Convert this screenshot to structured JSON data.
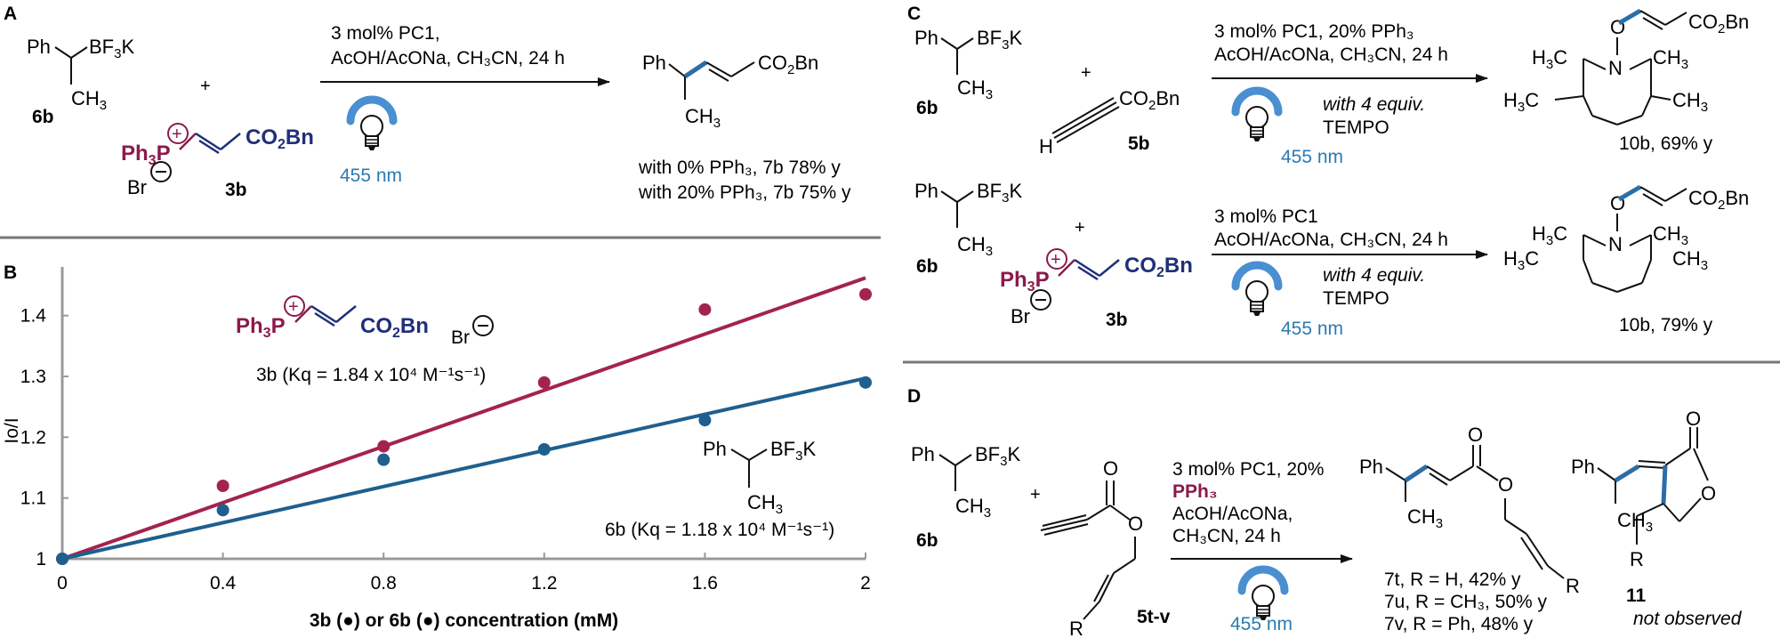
{
  "panels": {
    "A": {
      "letter": "A",
      "reactant1": {
        "label": "6b"
      },
      "reactant2": {
        "label": "3b"
      },
      "conditions": {
        "line1": "3 mol% PC1,",
        "line2": "AcOH/AcONa, CH₃CN, 24 h"
      },
      "light": "455 nm",
      "yield1": "with 0% PPh₃, 7b 78% y",
      "yield2": "with 20% PPh₃, 7b 75% y"
    },
    "B": {
      "letter": "B",
      "legend_3b": "3b (Kq = 1.84 x 10⁴ M⁻¹s⁻¹)",
      "legend_6b": "6b (Kq = 1.18 x 10⁴ M⁻¹s⁻¹)"
    },
    "C": {
      "letter": "C",
      "top": {
        "conditions": {
          "line1": "3 mol% PC1, 20% PPh₃",
          "line2": "AcOH/AcONa, CH₃CN, 24 h"
        },
        "additive1": "with 4 equiv.",
        "additive2": "TEMPO",
        "light": "455 nm",
        "reactant1": "6b",
        "reactant2": "5b",
        "yield": "10b, 69% y"
      },
      "bottom": {
        "conditions": {
          "line1": "3 mol% PC1",
          "line2": "AcOH/AcONa, CH₃CN, 24 h"
        },
        "additive1": "with 4 equiv.",
        "additive2": "TEMPO",
        "light": "455 nm",
        "reactant1": "6b",
        "reactant2": "3b",
        "yield": "10b, 79% y"
      }
    },
    "D": {
      "letter": "D",
      "reactant1": "6b",
      "reactant2": "5t-v",
      "conditions": {
        "line1": "3 mol% PC1, 20%",
        "line2": "PPh₃",
        "line3": "AcOH/AcONa,",
        "line4": "CH₃CN, 24 h"
      },
      "light": "455 nm",
      "yields": [
        "7t, R = H, 42% y",
        "7u, R = CH₃, 50% y",
        "7v, R = Ph, 48% y"
      ],
      "product2": "11",
      "product2_note": "not observed"
    }
  },
  "chart_data": {
    "type": "scatter",
    "title": "",
    "xlabel": "3b (●) or 6b (●) concentration (mM)",
    "ylabel": "Io/I",
    "xlim": [
      0,
      2
    ],
    "ylim": [
      1,
      1.48
    ],
    "x_ticks": [
      0,
      0.4,
      0.8,
      1.2,
      1.6,
      2
    ],
    "y_ticks": [
      1,
      1.1,
      1.2,
      1.3,
      1.4
    ],
    "grid": false,
    "series": [
      {
        "name": "3b",
        "color": "#a3234f",
        "x": [
          0,
          0.4,
          0.8,
          1.2,
          1.6,
          2
        ],
        "y": [
          1.0,
          1.12,
          1.185,
          1.29,
          1.41,
          1.435
        ],
        "fit": [
          [
            0,
            1.0
          ],
          [
            2,
            1.462
          ]
        ]
      },
      {
        "name": "6b",
        "color": "#1f5f8f",
        "x": [
          0,
          0.4,
          0.8,
          1.2,
          1.6,
          2
        ],
        "y": [
          1.0,
          1.08,
          1.163,
          1.18,
          1.228,
          1.29
        ],
        "fit": [
          [
            0,
            1.0
          ],
          [
            2,
            1.297
          ]
        ]
      }
    ]
  }
}
